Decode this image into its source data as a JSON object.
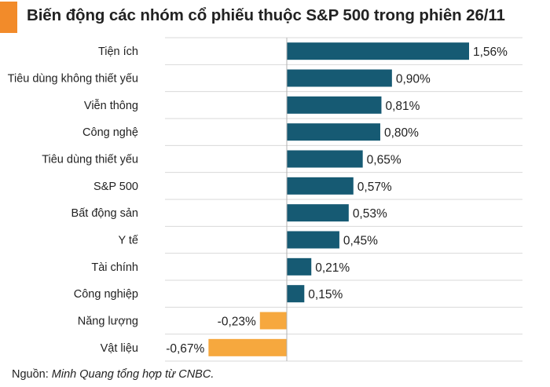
{
  "title": "Biến động các nhóm cổ phiếu thuộc S&P 500 trong phiên 26/11",
  "footnote": {
    "prefix": "Nguồn: ",
    "source": "Minh Quang tổng hợp từ CNBC."
  },
  "colors": {
    "accent": "#f28b2a",
    "positive": "#165a73",
    "negative": "#f6a83e",
    "grid": "#d9d9d9",
    "axis": "#b3b3b3",
    "text": "#222222"
  },
  "chart_data": {
    "type": "bar",
    "orientation": "horizontal",
    "title": "Biến động các nhóm cổ phiếu thuộc S&P 500 trong phiên 26/11",
    "categories": [
      "Tiện ích",
      "Tiêu dùng không thiết yếu",
      "Viễn thông",
      "Công nghệ",
      "Tiêu dùng thiết yếu",
      "S&P 500",
      "Bất động sản",
      "Y tế",
      "Tài chính",
      "Công nghiệp",
      "Năng lượng",
      "Vật liệu"
    ],
    "values": [
      1.56,
      0.9,
      0.81,
      0.8,
      0.65,
      0.57,
      0.53,
      0.45,
      0.21,
      0.15,
      -0.23,
      -0.67
    ],
    "value_labels": [
      "1,56%",
      "0,90%",
      "0,81%",
      "0,80%",
      "0,65%",
      "0,57%",
      "0,53%",
      "0,45%",
      "0,21%",
      "0,15%",
      "-0,23%",
      "-0,67%"
    ],
    "xlim": [
      -0.7,
      1.6
    ],
    "xlabel": "",
    "ylabel": "",
    "grid": true,
    "legend": "none"
  }
}
